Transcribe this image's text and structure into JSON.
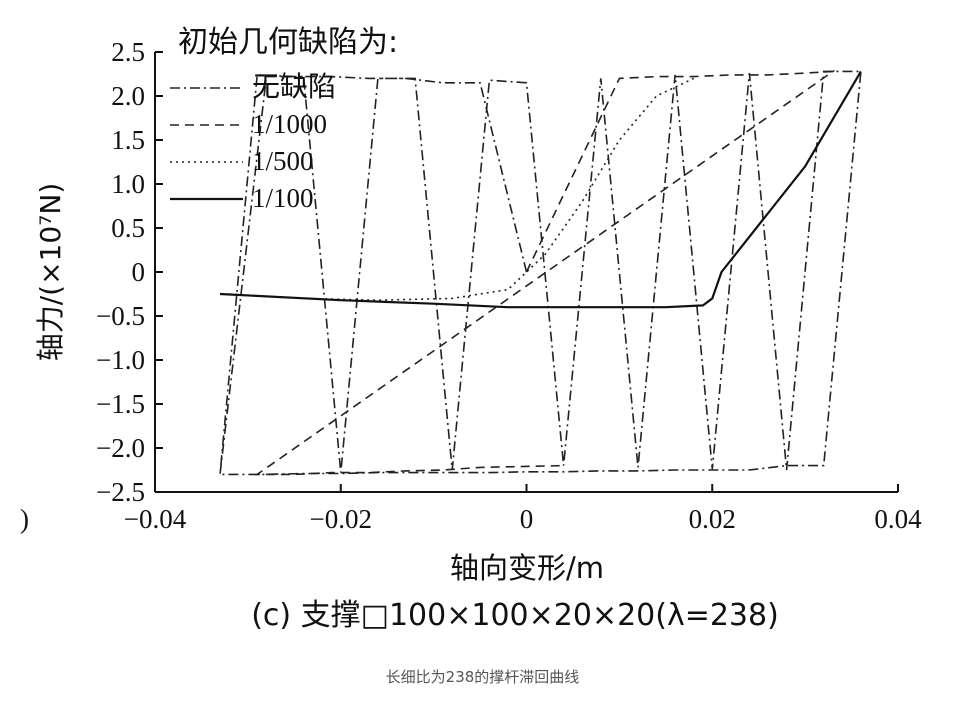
{
  "chart_data": {
    "type": "line",
    "title": "(c) 支撑□100×100×20×20(λ=238)",
    "xlabel": "轴向变形/m",
    "ylabel": "轴力/(×10⁷N)",
    "xlim": [
      -0.04,
      0.04
    ],
    "ylim": [
      -2.5,
      2.5
    ],
    "x_ticks": [
      -0.04,
      -0.02,
      0,
      0.02,
      0.04
    ],
    "x_tick_labels": [
      "−0.04",
      "−0.02",
      "0",
      "0.02",
      "0.04"
    ],
    "y_ticks": [
      2.5,
      2.0,
      1.5,
      1.0,
      0.5,
      0,
      -0.5,
      -1.0,
      -1.5,
      -2.0,
      -2.5
    ],
    "y_tick_labels": [
      "2.5",
      "2.0",
      "1.5",
      "1.0",
      "0.5",
      "0",
      "−0.5",
      "−1.0",
      "−1.5",
      "−2.0",
      "−2.5"
    ],
    "grid": false,
    "legend": {
      "title": "初始几何缺陷为:",
      "placement": "top-left"
    },
    "series": [
      {
        "name": "无缺陷",
        "style": "dashdot",
        "color": "#222222",
        "x": [
          0.0,
          -0.005,
          -0.009,
          -0.013,
          -0.017,
          -0.021,
          -0.025,
          -0.029,
          -0.033,
          -0.028,
          -0.024,
          -0.02,
          -0.016,
          -0.012,
          -0.008,
          -0.004,
          0.0,
          0.004,
          0.008,
          0.012,
          0.016,
          0.02,
          0.024,
          0.028,
          0.032,
          0.036,
          0.032,
          0.028,
          0.024,
          0.02,
          0.016,
          0.012,
          0.008,
          0.004,
          0.0,
          -0.004,
          -0.008,
          -0.012,
          -0.016,
          -0.02,
          -0.024,
          -0.028,
          -0.033
        ],
        "y": [
          0.0,
          2.15,
          2.15,
          2.2,
          2.2,
          2.22,
          2.22,
          2.24,
          -2.3,
          2.22,
          2.22,
          -2.28,
          2.2,
          2.2,
          -2.25,
          2.18,
          2.15,
          -2.2,
          2.2,
          -2.22,
          2.24,
          -2.24,
          2.26,
          -2.25,
          2.28,
          2.28,
          -2.2,
          -2.2,
          -2.25,
          -2.25,
          -2.25,
          -2.26,
          -2.26,
          -2.27,
          -2.27,
          -2.28,
          -2.28,
          -2.28,
          -2.28,
          -2.29,
          -2.29,
          -2.3,
          -2.3
        ]
      },
      {
        "name": "1/1000",
        "style": "dashed",
        "color": "#222222",
        "x": [
          0.0,
          0.01,
          0.014,
          0.018,
          0.022,
          0.026,
          0.03,
          0.033,
          -0.029,
          -0.025,
          -0.021,
          -0.017,
          -0.013,
          -0.009,
          -0.005,
          0.004
        ],
        "y": [
          0.0,
          2.2,
          2.22,
          2.22,
          2.24,
          2.24,
          2.26,
          2.28,
          -2.3,
          -2.3,
          -2.28,
          -2.28,
          -2.26,
          -2.25,
          -2.22,
          -2.2
        ]
      },
      {
        "name": "1/500",
        "style": "dotted",
        "color": "#222222",
        "x": [
          -0.032,
          -0.024,
          -0.016,
          -0.008,
          -0.002,
          0.002,
          0.006,
          0.01,
          0.014,
          0.018
        ],
        "y": [
          -0.25,
          -0.3,
          -0.32,
          -0.3,
          -0.2,
          0.2,
          0.8,
          1.5,
          2.0,
          2.2
        ]
      },
      {
        "name": "1/100",
        "style": "solid",
        "color": "#111111",
        "x": [
          -0.033,
          -0.02,
          -0.01,
          -0.002,
          0.005,
          0.01,
          0.015,
          0.019,
          0.02,
          0.021,
          0.03,
          0.036
        ],
        "y": [
          -0.25,
          -0.32,
          -0.36,
          -0.4,
          -0.4,
          -0.4,
          -0.4,
          -0.38,
          -0.3,
          0.0,
          1.2,
          2.28
        ]
      }
    ]
  },
  "caption": "长细比为238的撑杆滞回曲线",
  "edge_mark": ")"
}
